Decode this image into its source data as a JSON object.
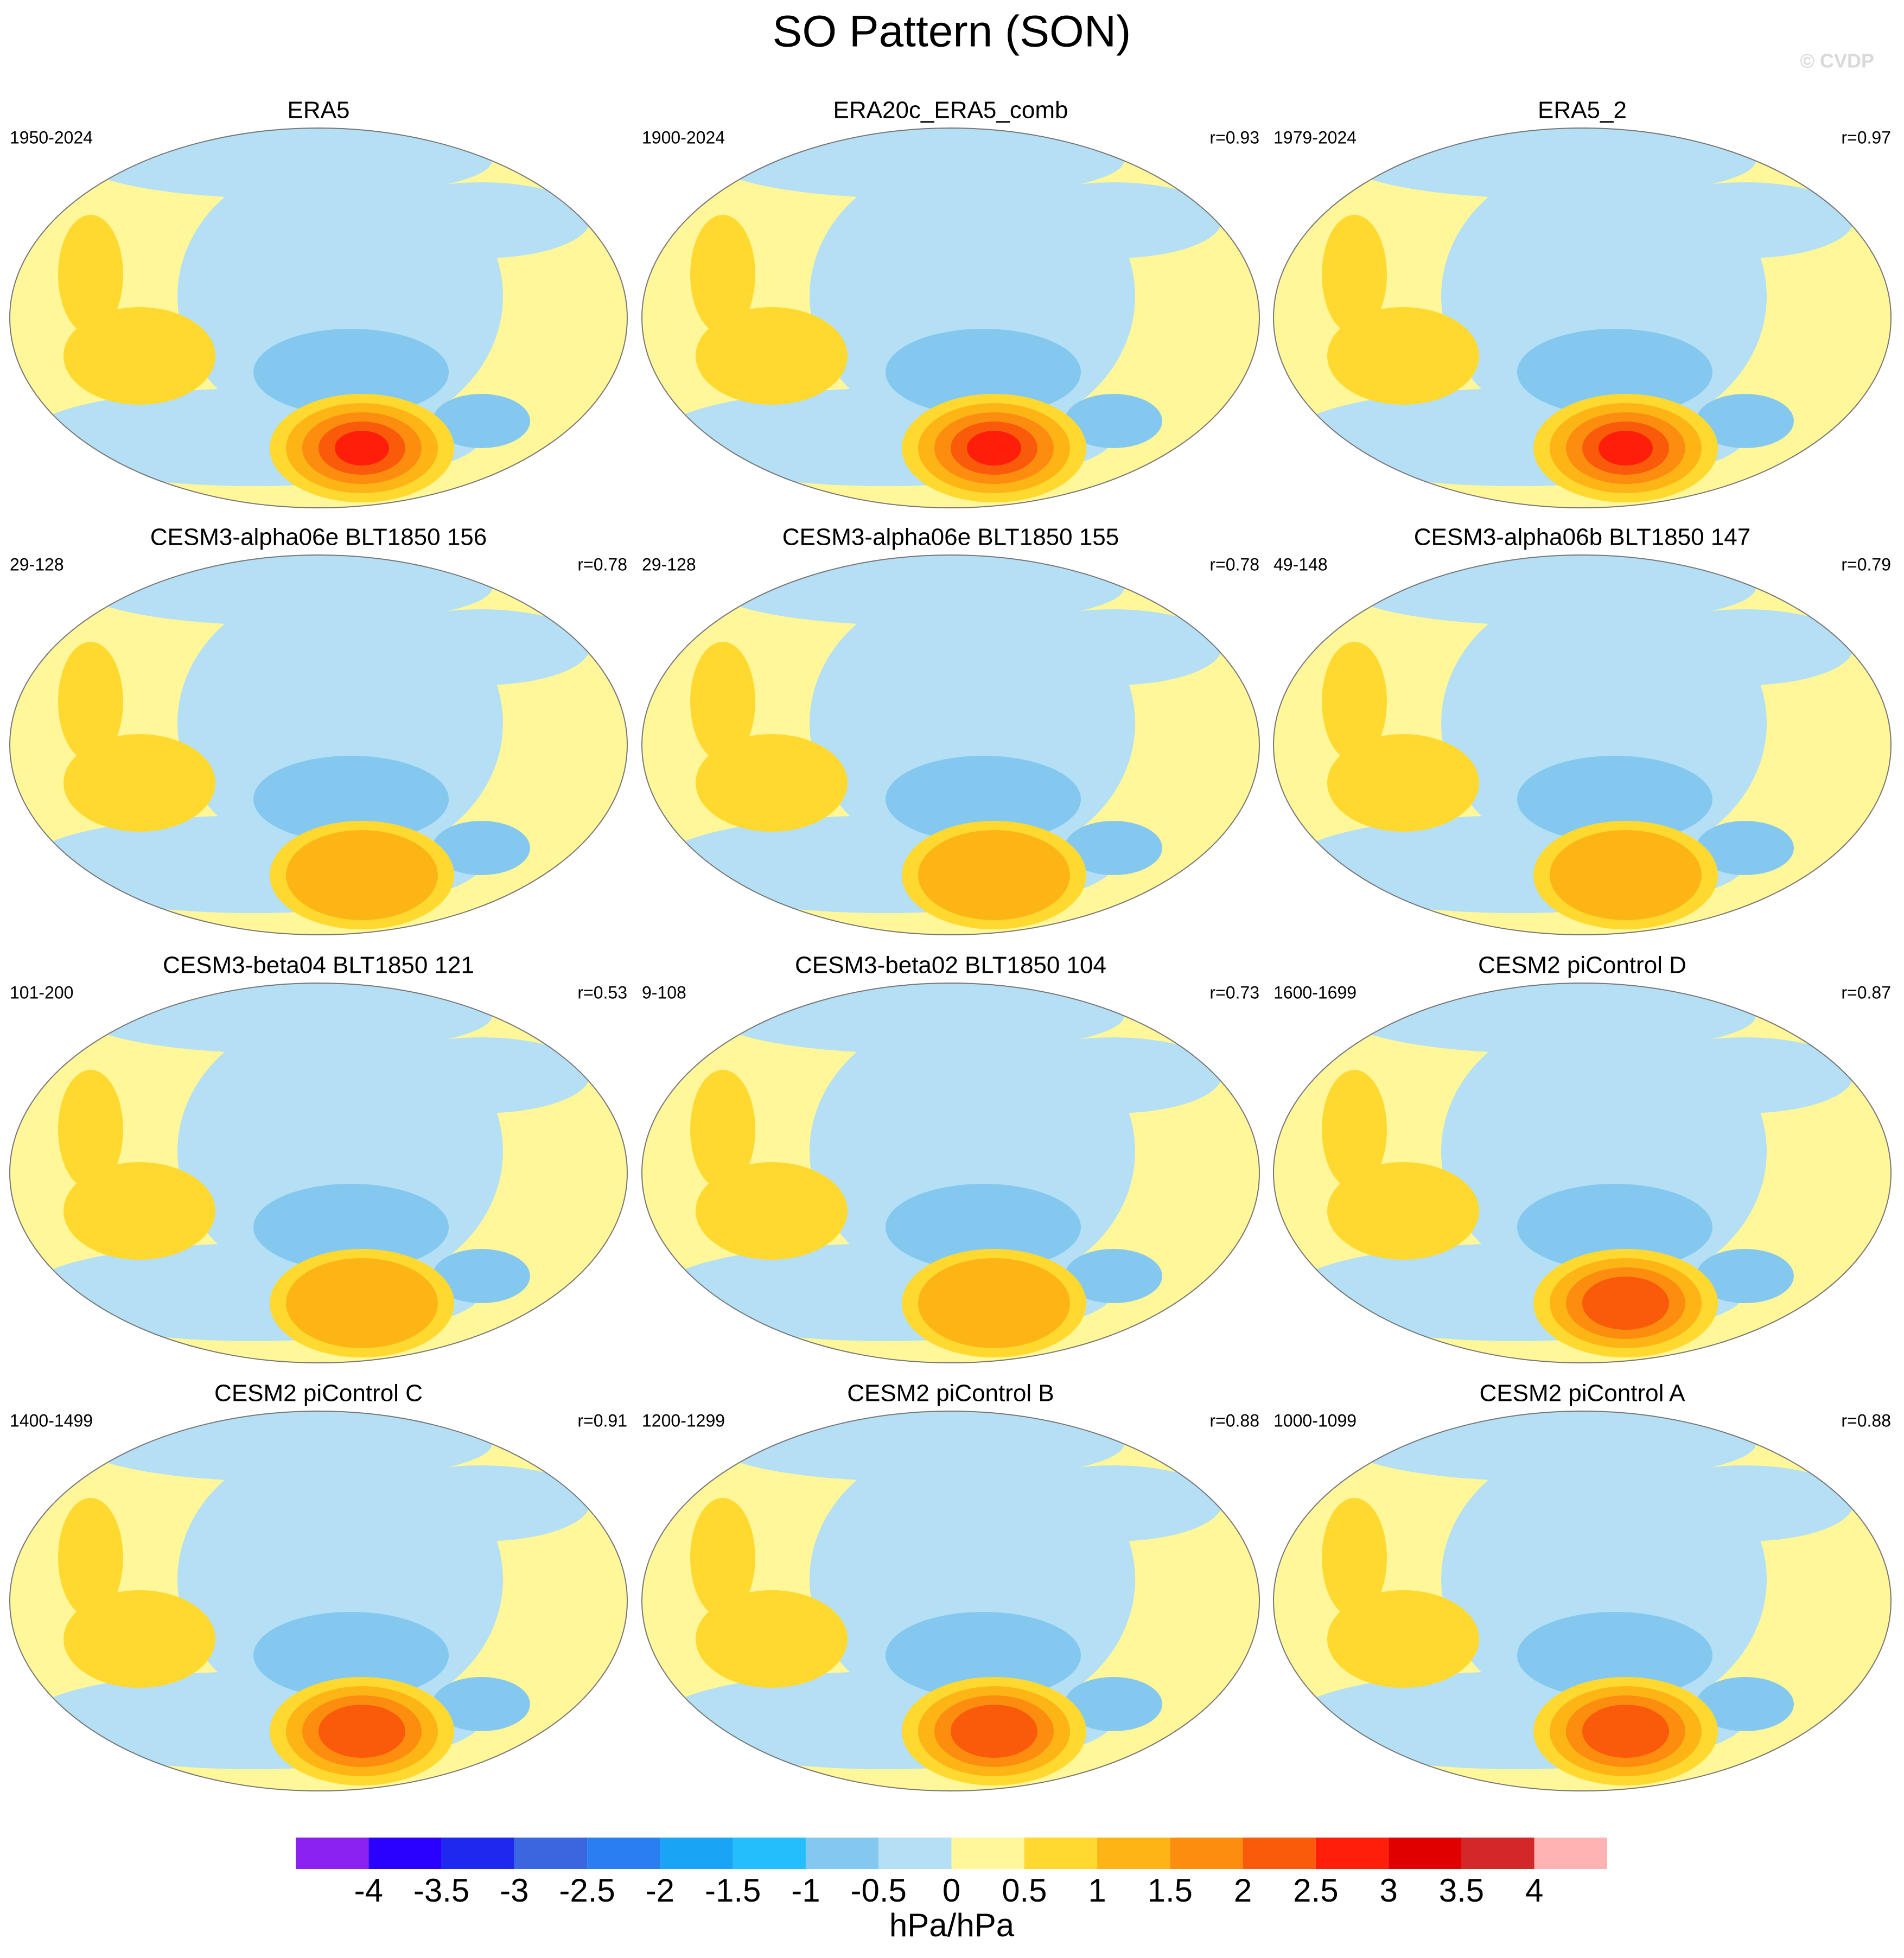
{
  "title": "SO Pattern (SON)",
  "watermark": "© CVDP",
  "panels": [
    {
      "title": "ERA5",
      "period": "1950-2024"
    },
    {
      "title": "ERA20c_ERA5_comb",
      "period": "1900-2024",
      "r": "r=0.93"
    },
    {
      "title": "ERA5_2",
      "period": "1979-2024",
      "r": "r=0.97"
    },
    {
      "title": "CESM3-alpha06e BLT1850 156",
      "period": "29-128",
      "r": "r=0.78"
    },
    {
      "title": "CESM3-alpha06e BLT1850 155",
      "period": "29-128",
      "r": "r=0.78"
    },
    {
      "title": "CESM3-alpha06b BLT1850 147",
      "period": "49-148",
      "r": "r=0.79"
    },
    {
      "title": "CESM3-beta04 BLT1850 121",
      "period": "101-200",
      "r": "r=0.53"
    },
    {
      "title": "CESM3-beta02 BLT1850 104",
      "period": "9-108",
      "r": "r=0.73"
    },
    {
      "title": "CESM2 piControl D",
      "period": "1600-1699",
      "r": "r=0.87"
    },
    {
      "title": "CESM2 piControl C",
      "period": "1400-1499",
      "r": "r=0.91"
    },
    {
      "title": "CESM2 piControl B",
      "period": "1200-1299",
      "r": "r=0.88"
    },
    {
      "title": "CESM2 piControl A",
      "period": "1000-1099",
      "r": "r=0.88"
    }
  ],
  "colorbar": {
    "levels": [
      -4,
      -3.5,
      -3,
      -2.5,
      -2,
      -1.5,
      -1,
      -0.5,
      0,
      0.5,
      1,
      1.5,
      2,
      2.5,
      3,
      3.5,
      4
    ],
    "colors": [
      "#8b22f0",
      "#2a00ff",
      "#1e28ef",
      "#3a66e0",
      "#2b7df2",
      "#1aa4f6",
      "#24befc",
      "#85c8ef",
      "#b5dff5",
      "#fff799",
      "#ffd92f",
      "#fdb515",
      "#fc8d0f",
      "#fa5b0a",
      "#ff1e0a",
      "#e00000",
      "#d2282a",
      "#ffb3b3"
    ],
    "unit": "hPa/hPa"
  }
}
